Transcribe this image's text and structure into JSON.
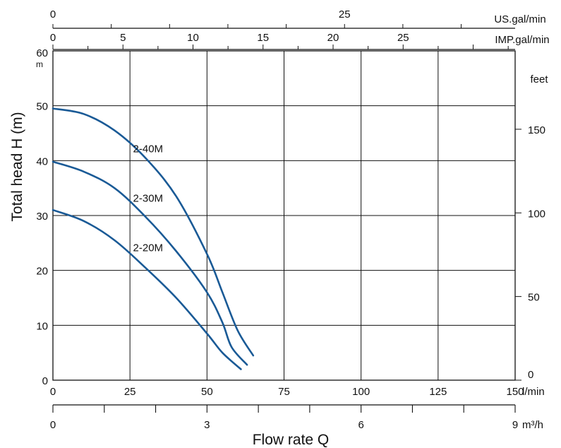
{
  "chart_data": {
    "type": "line",
    "title": "",
    "xlabel": "Flow rate  Q",
    "ylabel": "Total head H (m)",
    "xlim": [
      0,
      150
    ],
    "ylim": [
      0,
      60
    ],
    "grid": true,
    "colors": {
      "curve": "#1a5a96",
      "grid": "#111111"
    },
    "x_axis_lpm": {
      "unit": "l/min",
      "ticks": [
        0,
        25,
        50,
        75,
        100,
        125,
        150
      ]
    },
    "x_axis_m3h": {
      "unit": "m³/h",
      "ticks": [
        0,
        3,
        6,
        9
      ]
    },
    "x_axis_usgal": {
      "unit": "US.gal/min",
      "ticks": [
        0,
        25
      ]
    },
    "x_axis_impgal": {
      "unit": "IMP.gal/min",
      "ticks": [
        0,
        5,
        10,
        15,
        20,
        25
      ]
    },
    "y_axis_m": {
      "unit": "m",
      "ticks": [
        0,
        10,
        20,
        30,
        40,
        50,
        60
      ]
    },
    "y_axis_feet": {
      "unit": "feet",
      "ticks": [
        0,
        50,
        100,
        150
      ]
    },
    "series": [
      {
        "name": "2-40M",
        "label_at": [
          26,
          41.5
        ],
        "points": [
          [
            0,
            49.5
          ],
          [
            10,
            48.5
          ],
          [
            20,
            45.5
          ],
          [
            30,
            40.5
          ],
          [
            40,
            33.5
          ],
          [
            50,
            23.0
          ],
          [
            55,
            16.0
          ],
          [
            60,
            9.0
          ],
          [
            65,
            4.5
          ]
        ]
      },
      {
        "name": "2-30M",
        "label_at": [
          26,
          32.5
        ],
        "points": [
          [
            0,
            39.8
          ],
          [
            10,
            38.0
          ],
          [
            20,
            35.0
          ],
          [
            30,
            29.8
          ],
          [
            40,
            23.5
          ],
          [
            50,
            16.0
          ],
          [
            55,
            10.5
          ],
          [
            58,
            6.0
          ],
          [
            63,
            2.8
          ]
        ]
      },
      {
        "name": "2-20M",
        "label_at": [
          26,
          23.5
        ],
        "points": [
          [
            0,
            31.0
          ],
          [
            10,
            29.0
          ],
          [
            20,
            25.5
          ],
          [
            30,
            20.5
          ],
          [
            40,
            15.0
          ],
          [
            50,
            8.5
          ],
          [
            55,
            5.0
          ],
          [
            61,
            2.0
          ]
        ]
      }
    ]
  }
}
